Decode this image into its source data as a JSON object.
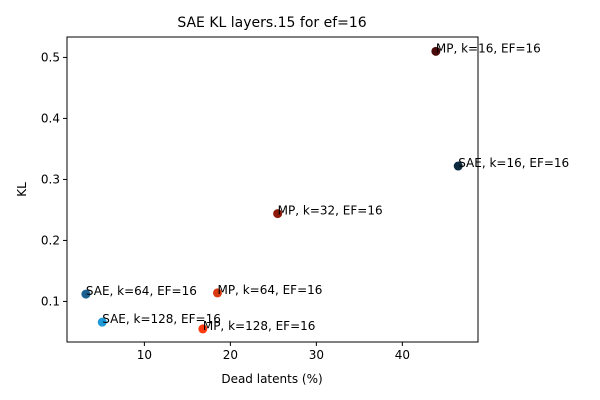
{
  "chart_data": {
    "type": "scatter",
    "title": "SAE KL layers.15 for ef=16",
    "xlabel": "Dead latents (%)",
    "ylabel": "KL",
    "xlim": [
      1.0,
      48.8
    ],
    "ylim": [
      0.0335,
      0.5335
    ],
    "xticks": [
      10,
      20,
      30,
      40
    ],
    "yticks": [
      0.1,
      0.2,
      0.3,
      0.4,
      0.5
    ],
    "xtick_labels": [
      "10",
      "20",
      "30",
      "40"
    ],
    "ytick_labels": [
      "0.1",
      "0.2",
      "0.3",
      "0.4",
      "0.5"
    ],
    "grid": false,
    "legend": "none",
    "points": [
      {
        "label": "MP, k=16, EF=16",
        "x": 43.9,
        "y": 0.51,
        "color": "#4a0a0a"
      },
      {
        "label": "SAE, k=16, EF=16",
        "x": 46.5,
        "y": 0.322,
        "color": "#0b2a40"
      },
      {
        "label": "MP, k=32, EF=16",
        "x": 25.5,
        "y": 0.244,
        "color": "#8b1a0a"
      },
      {
        "label": "SAE, k=64, EF=16",
        "x": 3.2,
        "y": 0.112,
        "color": "#1a5f8e"
      },
      {
        "label": "MP, k=64, EF=16",
        "x": 18.5,
        "y": 0.114,
        "color": "#d93a0f"
      },
      {
        "label": "SAE, k=128, EF=16",
        "x": 5.1,
        "y": 0.066,
        "color": "#1f9ad8"
      },
      {
        "label": "MP, k=128, EF=16",
        "x": 16.8,
        "y": 0.055,
        "color": "#ff3a10"
      }
    ]
  }
}
